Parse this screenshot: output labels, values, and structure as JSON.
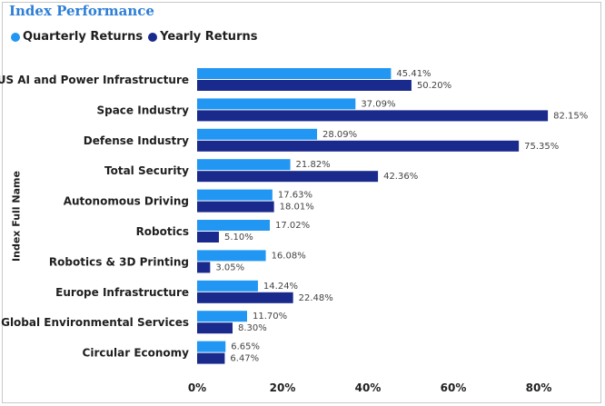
{
  "title": "Index Performance",
  "colors": {
    "quarterly": "#2196f3",
    "yearly": "#1a2a8c"
  },
  "chart_data": {
    "type": "bar",
    "orientation": "horizontal",
    "title": "Index Performance",
    "ylabel": "Index Full Name",
    "xlabel": "",
    "xlim": [
      0,
      90
    ],
    "xticks": [
      0,
      20,
      40,
      60,
      80
    ],
    "xtick_labels": [
      "0%",
      "20%",
      "40%",
      "60%",
      "80%"
    ],
    "legend_position": "top-left",
    "categories": [
      "US AI and Power Infrastructure",
      "Space Industry",
      "Defense Industry",
      "Total Security",
      "Autonomous Driving",
      "Robotics",
      "Robotics & 3D Printing",
      "Europe Infrastructure",
      "Global Environmental Services",
      "Circular Economy"
    ],
    "series": [
      {
        "name": "Quarterly Returns",
        "values": [
          45.41,
          37.09,
          28.09,
          21.82,
          17.63,
          17.02,
          16.08,
          14.24,
          11.7,
          6.65
        ],
        "labels": [
          "45.41%",
          "37.09%",
          "28.09%",
          "21.82%",
          "17.63%",
          "17.02%",
          "16.08%",
          "14.24%",
          "11.70%",
          "6.65%"
        ]
      },
      {
        "name": "Yearly Returns",
        "values": [
          50.2,
          82.15,
          75.35,
          42.36,
          18.01,
          5.1,
          3.05,
          22.48,
          8.3,
          6.47
        ],
        "labels": [
          "50.20%",
          "82.15%",
          "75.35%",
          "42.36%",
          "18.01%",
          "5.10%",
          "3.05%",
          "22.48%",
          "8.30%",
          "6.47%"
        ]
      }
    ]
  }
}
